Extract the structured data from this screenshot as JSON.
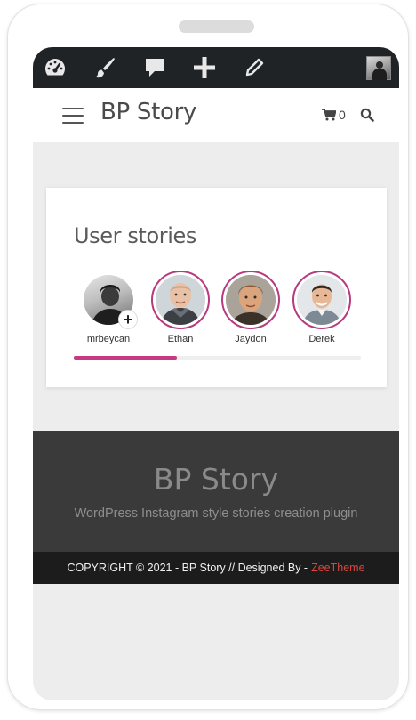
{
  "admin_bar": {
    "icons": [
      "dashboard-icon",
      "customize-brush-icon",
      "comments-icon",
      "new-content-icon",
      "edit-icon"
    ],
    "avatar": "admin-avatar"
  },
  "header": {
    "site_title": "BP Story",
    "cart_count": "0"
  },
  "stories_widget": {
    "title": "User stories",
    "stories": [
      {
        "name": "mrbeycan",
        "own": true
      },
      {
        "name": "Ethan",
        "own": false
      },
      {
        "name": "Jaydon",
        "own": false
      },
      {
        "name": "Derek",
        "own": false
      }
    ],
    "add_badge": "+",
    "scroll_progress": 0.36,
    "accent_color": "#c73a82"
  },
  "footer": {
    "title": "BP Story",
    "tagline": "WordPress Instagram style stories creation plugin",
    "copyright": "COPYRIGHT © 2021 - BP Story // Designed By -",
    "designer": "ZeeTheme",
    "designer_color": "#d9453d"
  }
}
